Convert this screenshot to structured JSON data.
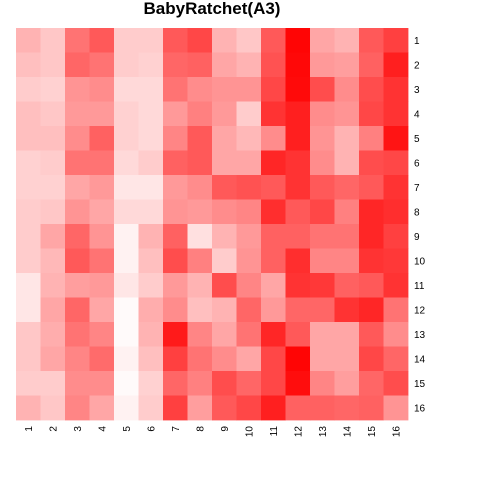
{
  "chart_data": {
    "type": "heatmap",
    "title": "BabyRatchet(A3)",
    "xlabel": "",
    "ylabel": "",
    "x_labels": [
      "1",
      "2",
      "3",
      "4",
      "5",
      "6",
      "7",
      "8",
      "9",
      "10",
      "11",
      "12",
      "13",
      "14",
      "15",
      "16"
    ],
    "y_labels": [
      "1",
      "2",
      "3",
      "4",
      "5",
      "6",
      "7",
      "8",
      "9",
      "10",
      "11",
      "12",
      "13",
      "14",
      "15",
      "16"
    ],
    "value_range": [
      0,
      1
    ],
    "colors": {
      "low": "#ffffff",
      "high": "#ff0000"
    },
    "legend": "none",
    "grid": false,
    "values": [
      [
        0.3,
        0.22,
        0.55,
        0.65,
        0.2,
        0.2,
        0.65,
        0.72,
        0.3,
        0.22,
        0.65,
        0.98,
        0.35,
        0.3,
        0.65,
        0.75
      ],
      [
        0.25,
        0.22,
        0.6,
        0.55,
        0.2,
        0.18,
        0.6,
        0.62,
        0.35,
        0.3,
        0.68,
        0.97,
        0.4,
        0.38,
        0.62,
        0.88
      ],
      [
        0.2,
        0.18,
        0.42,
        0.45,
        0.15,
        0.15,
        0.55,
        0.45,
        0.42,
        0.42,
        0.72,
        0.96,
        0.7,
        0.45,
        0.7,
        0.8
      ],
      [
        0.25,
        0.22,
        0.4,
        0.4,
        0.18,
        0.15,
        0.4,
        0.5,
        0.4,
        0.2,
        0.8,
        0.88,
        0.45,
        0.42,
        0.72,
        0.8
      ],
      [
        0.25,
        0.25,
        0.45,
        0.62,
        0.18,
        0.15,
        0.48,
        0.65,
        0.35,
        0.28,
        0.45,
        0.88,
        0.42,
        0.3,
        0.5,
        0.92
      ],
      [
        0.18,
        0.2,
        0.55,
        0.55,
        0.15,
        0.2,
        0.62,
        0.65,
        0.35,
        0.35,
        0.85,
        0.8,
        0.45,
        0.3,
        0.7,
        0.72
      ],
      [
        0.18,
        0.18,
        0.35,
        0.4,
        0.1,
        0.1,
        0.4,
        0.45,
        0.65,
        0.68,
        0.65,
        0.8,
        0.65,
        0.6,
        0.65,
        0.8
      ],
      [
        0.2,
        0.22,
        0.42,
        0.35,
        0.15,
        0.15,
        0.42,
        0.4,
        0.45,
        0.48,
        0.82,
        0.65,
        0.72,
        0.5,
        0.85,
        0.82
      ],
      [
        0.2,
        0.35,
        0.6,
        0.42,
        0.05,
        0.3,
        0.62,
        0.12,
        0.3,
        0.4,
        0.62,
        0.62,
        0.55,
        0.55,
        0.85,
        0.75
      ],
      [
        0.2,
        0.28,
        0.65,
        0.55,
        0.05,
        0.25,
        0.7,
        0.5,
        0.2,
        0.42,
        0.62,
        0.82,
        0.48,
        0.48,
        0.8,
        0.78
      ],
      [
        0.1,
        0.3,
        0.38,
        0.4,
        0.1,
        0.2,
        0.4,
        0.3,
        0.7,
        0.48,
        0.35,
        0.8,
        0.78,
        0.62,
        0.65,
        0.8
      ],
      [
        0.1,
        0.35,
        0.6,
        0.35,
        0.02,
        0.32,
        0.45,
        0.25,
        0.3,
        0.6,
        0.4,
        0.6,
        0.6,
        0.8,
        0.85,
        0.55
      ],
      [
        0.22,
        0.32,
        0.55,
        0.48,
        0.02,
        0.3,
        0.9,
        0.48,
        0.35,
        0.55,
        0.85,
        0.65,
        0.35,
        0.35,
        0.65,
        0.45
      ],
      [
        0.22,
        0.35,
        0.48,
        0.58,
        0.05,
        0.25,
        0.75,
        0.55,
        0.45,
        0.35,
        0.72,
        0.98,
        0.35,
        0.35,
        0.72,
        0.6
      ],
      [
        0.2,
        0.2,
        0.45,
        0.45,
        0.02,
        0.18,
        0.6,
        0.5,
        0.7,
        0.6,
        0.72,
        0.95,
        0.48,
        0.38,
        0.6,
        0.7
      ],
      [
        0.3,
        0.22,
        0.48,
        0.35,
        0.05,
        0.2,
        0.75,
        0.38,
        0.65,
        0.72,
        0.88,
        0.62,
        0.62,
        0.6,
        0.62,
        0.42
      ]
    ]
  }
}
